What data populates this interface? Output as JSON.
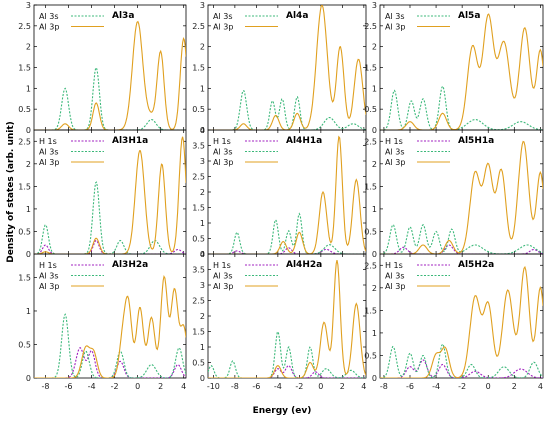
{
  "figure": {
    "ylabel": "Density of states (arb. unit)",
    "xlabel": "Energy (ev)"
  },
  "chart_data": [
    {
      "type": "line",
      "title": "Al3a",
      "xlim": [
        -9,
        4.2
      ],
      "ylim": [
        0,
        3
      ],
      "yticks": [
        0,
        0.5,
        1,
        1.5,
        2,
        2.5,
        3
      ],
      "xticks": [],
      "legend": [
        "Al 3s",
        "Al 3p"
      ],
      "series": [
        {
          "name": "Al 3s",
          "color": "#3cb87a",
          "dashed": true,
          "peaks": [
            [
              -6.3,
              1.0,
              0.3
            ],
            [
              -3.6,
              1.5,
              0.28
            ],
            [
              1.2,
              0.25,
              0.4
            ]
          ]
        },
        {
          "name": "Al 3p",
          "color": "#e0a020",
          "dashed": false,
          "peaks": [
            [
              -6.3,
              0.15,
              0.3
            ],
            [
              -3.6,
              0.65,
              0.28
            ],
            [
              0,
              2.6,
              0.45
            ],
            [
              2.0,
              1.85,
              0.3
            ],
            [
              4.0,
              2.2,
              0.3
            ],
            [
              1.2,
              0.3,
              0.4
            ]
          ]
        }
      ]
    },
    {
      "type": "line",
      "title": "Al4a",
      "xlim": [
        -10.5,
        4.2
      ],
      "ylim": [
        0,
        3
      ],
      "yticks": [
        0,
        0.5,
        1,
        1.5,
        2,
        2.5,
        3
      ],
      "xticks": [],
      "legend": [
        "Al 3s",
        "Al 3p"
      ],
      "series": [
        {
          "name": "Al 3s",
          "color": "#3cb87a",
          "dashed": true,
          "peaks": [
            [
              -7.2,
              0.95,
              0.3
            ],
            [
              -4.5,
              0.7,
              0.25
            ],
            [
              -3.6,
              0.75,
              0.25
            ],
            [
              -2.2,
              0.8,
              0.25
            ],
            [
              0.8,
              0.3,
              0.5
            ],
            [
              3.0,
              0.15,
              0.5
            ]
          ]
        },
        {
          "name": "Al 3p",
          "color": "#e0a020",
          "dashed": false,
          "peaks": [
            [
              -7.2,
              0.15,
              0.3
            ],
            [
              -4.2,
              0.35,
              0.3
            ],
            [
              -2.2,
              0.4,
              0.3
            ],
            [
              0.1,
              3.0,
              0.5
            ],
            [
              1.8,
              2.0,
              0.35
            ],
            [
              3.5,
              1.7,
              0.4
            ]
          ]
        }
      ]
    },
    {
      "type": "line",
      "title": "Al5a",
      "xlim": [
        -8.3,
        4.2
      ],
      "ylim": [
        0,
        3
      ],
      "yticks": [
        0,
        0.5,
        1,
        1.5,
        2,
        2.5,
        3
      ],
      "xticks": [],
      "legend": [
        "Al 3s",
        "Al 3p"
      ],
      "series": [
        {
          "name": "Al 3s",
          "color": "#3cb87a",
          "dashed": true,
          "peaks": [
            [
              -7.2,
              0.95,
              0.25
            ],
            [
              -5.9,
              0.7,
              0.25
            ],
            [
              -5.0,
              0.75,
              0.25
            ],
            [
              -3.5,
              1.05,
              0.25
            ],
            [
              -1.0,
              0.25,
              0.6
            ],
            [
              2.5,
              0.2,
              0.6
            ]
          ]
        },
        {
          "name": "Al 3p",
          "color": "#e0a020",
          "dashed": false,
          "peaks": [
            [
              -6.0,
              0.2,
              0.3
            ],
            [
              -3.5,
              0.4,
              0.3
            ],
            [
              0.0,
              2.7,
              0.4
            ],
            [
              -1.2,
              2.0,
              0.4
            ],
            [
              1.2,
              2.1,
              0.45
            ],
            [
              2.8,
              2.45,
              0.4
            ],
            [
              4.0,
              1.9,
              0.3
            ]
          ]
        }
      ]
    },
    {
      "type": "line",
      "title": "Al3H1a",
      "xlim": [
        -9,
        4.2
      ],
      "ylim": [
        0,
        2.75
      ],
      "yticks": [
        0,
        0.5,
        1,
        1.5,
        2,
        2.5
      ],
      "xticks": [],
      "legend": [
        "H 1s",
        "Al 3s",
        "Al 3p"
      ],
      "series": [
        {
          "name": "H 1s",
          "color": "#a020c0",
          "dashed": true,
          "peaks": [
            [
              -8.0,
              0.2,
              0.25
            ],
            [
              -3.6,
              0.3,
              0.25
            ],
            [
              3.5,
              0.1,
              0.3
            ]
          ]
        },
        {
          "name": "Al 3s",
          "color": "#3cb87a",
          "dashed": true,
          "peaks": [
            [
              -8.0,
              0.65,
              0.25
            ],
            [
              -3.6,
              1.6,
              0.28
            ],
            [
              -1.5,
              0.3,
              0.3
            ],
            [
              1.5,
              0.3,
              0.4
            ]
          ]
        },
        {
          "name": "Al 3p",
          "color": "#e0a020",
          "dashed": false,
          "peaks": [
            [
              -8.0,
              0.05,
              0.25
            ],
            [
              -3.6,
              0.35,
              0.28
            ],
            [
              0.2,
              2.3,
              0.4
            ],
            [
              2.1,
              2.0,
              0.3
            ],
            [
              3.9,
              2.6,
              0.3
            ]
          ]
        }
      ]
    },
    {
      "type": "line",
      "title": "Al4H1a",
      "xlim": [
        -10.5,
        4.2
      ],
      "ylim": [
        0,
        4
      ],
      "yticks": [
        0,
        0.5,
        1,
        1.5,
        2,
        2.5,
        3,
        3.5,
        4
      ],
      "xticks": [],
      "legend": [
        "H 1s",
        "Al 3s",
        "Al 3p"
      ],
      "series": [
        {
          "name": "H 1s",
          "color": "#a020c0",
          "dashed": true,
          "peaks": [
            [
              -7.8,
              0.1,
              0.3
            ],
            [
              -3.0,
              0.2,
              0.3
            ],
            [
              0.5,
              0.15,
              0.4
            ]
          ]
        },
        {
          "name": "Al 3s",
          "color": "#3cb87a",
          "dashed": true,
          "peaks": [
            [
              -7.8,
              0.7,
              0.25
            ],
            [
              -4.2,
              1.1,
              0.25
            ],
            [
              -3.0,
              0.75,
              0.25
            ],
            [
              -2.0,
              1.3,
              0.25
            ],
            [
              0.8,
              0.3,
              0.5
            ]
          ]
        },
        {
          "name": "Al 3p",
          "color": "#e0a020",
          "dashed": false,
          "peaks": [
            [
              -3.5,
              0.4,
              0.3
            ],
            [
              -2.0,
              0.7,
              0.3
            ],
            [
              0.2,
              2.0,
              0.35
            ],
            [
              1.7,
              3.8,
              0.3
            ],
            [
              3.3,
              2.4,
              0.35
            ]
          ]
        }
      ]
    },
    {
      "type": "line",
      "title": "Al5H1a",
      "xlim": [
        -8.3,
        4.2
      ],
      "ylim": [
        0,
        2.75
      ],
      "yticks": [
        0,
        0.5,
        1,
        1.5,
        2,
        2.5
      ],
      "xticks": [],
      "legend": [
        "H 1s",
        "Al 3s",
        "Al 3p"
      ],
      "series": [
        {
          "name": "H 1s",
          "color": "#a020c0",
          "dashed": true,
          "peaks": [
            [
              -6.5,
              0.15,
              0.3
            ],
            [
              -3.0,
              0.2,
              0.3
            ],
            [
              3.5,
              0.1,
              0.3
            ]
          ]
        },
        {
          "name": "Al 3s",
          "color": "#3cb87a",
          "dashed": true,
          "peaks": [
            [
              -7.3,
              0.65,
              0.25
            ],
            [
              -6.0,
              0.6,
              0.25
            ],
            [
              -5.0,
              0.65,
              0.25
            ],
            [
              -4.0,
              0.5,
              0.25
            ],
            [
              -2.8,
              0.55,
              0.25
            ],
            [
              -1.0,
              0.2,
              0.6
            ],
            [
              3.0,
              0.2,
              0.6
            ]
          ]
        },
        {
          "name": "Al 3p",
          "color": "#e0a020",
          "dashed": false,
          "peaks": [
            [
              -5.0,
              0.2,
              0.3
            ],
            [
              -3.0,
              0.3,
              0.3
            ],
            [
              -1.0,
              1.8,
              0.4
            ],
            [
              0.0,
              1.9,
              0.35
            ],
            [
              1.0,
              1.85,
              0.35
            ],
            [
              2.7,
              2.5,
              0.4
            ],
            [
              4.0,
              1.8,
              0.3
            ]
          ]
        }
      ]
    },
    {
      "type": "line",
      "title": "Al3H2a",
      "xlim": [
        -9,
        4.2
      ],
      "ylim": [
        0,
        1.85
      ],
      "yticks": [
        0,
        0.5,
        1,
        1.5
      ],
      "xticks": [
        -8,
        -6,
        -4,
        -2,
        0,
        2,
        4
      ],
      "legend": [
        "H 1s",
        "Al 3s",
        "Al 3p"
      ],
      "series": [
        {
          "name": "H 1s",
          "color": "#a020c0",
          "dashed": true,
          "peaks": [
            [
              -5.0,
              0.45,
              0.35
            ],
            [
              -4.0,
              0.4,
              0.3
            ],
            [
              -1.5,
              0.25,
              0.3
            ],
            [
              3.5,
              0.2,
              0.3
            ]
          ]
        },
        {
          "name": "Al 3s",
          "color": "#3cb87a",
          "dashed": true,
          "peaks": [
            [
              -6.3,
              0.95,
              0.3
            ],
            [
              -4.5,
              0.4,
              0.3
            ],
            [
              -1.5,
              0.4,
              0.3
            ],
            [
              1.2,
              0.2,
              0.4
            ],
            [
              3.6,
              0.45,
              0.3
            ]
          ]
        },
        {
          "name": "Al 3p",
          "color": "#e0a020",
          "dashed": false,
          "peaks": [
            [
              -4.5,
              0.45,
              0.35
            ],
            [
              -3.8,
              0.35,
              0.3
            ],
            [
              -1.3,
              0.55,
              0.3
            ],
            [
              -0.8,
              1.05,
              0.3
            ],
            [
              0.2,
              1.05,
              0.3
            ],
            [
              1.2,
              0.9,
              0.3
            ],
            [
              2.3,
              1.5,
              0.3
            ],
            [
              3.2,
              1.3,
              0.3
            ],
            [
              4.0,
              0.75,
              0.3
            ]
          ]
        }
      ]
    },
    {
      "type": "line",
      "title": "Al4H2a",
      "xlim": [
        -10.5,
        4.2
      ],
      "ylim": [
        0,
        4
      ],
      "yticks": [
        0,
        0.5,
        1,
        1.5,
        2,
        2.5,
        3,
        3.5,
        4
      ],
      "xticks": [
        -10,
        -8,
        -6,
        -4,
        -2,
        0,
        2,
        4
      ],
      "legend": [
        "H 1s",
        "Al 3s",
        "Al 3p"
      ],
      "series": [
        {
          "name": "H 1s",
          "color": "#a020c0",
          "dashed": true,
          "peaks": [
            [
              -4.0,
              0.3,
              0.3
            ],
            [
              -3.0,
              0.4,
              0.3
            ],
            [
              -0.5,
              0.2,
              0.3
            ]
          ]
        },
        {
          "name": "Al 3s",
          "color": "#3cb87a",
          "dashed": true,
          "peaks": [
            [
              -10.2,
              0.4,
              0.25
            ],
            [
              -8.2,
              0.55,
              0.25
            ],
            [
              -4.0,
              1.5,
              0.25
            ],
            [
              -3.0,
              1.0,
              0.25
            ],
            [
              -1.0,
              1.0,
              0.25
            ],
            [
              0.5,
              0.3,
              0.4
            ],
            [
              2.8,
              0.25,
              0.4
            ]
          ]
        },
        {
          "name": "Al 3p",
          "color": "#e0a020",
          "dashed": false,
          "peaks": [
            [
              -4.0,
              0.4,
              0.3
            ],
            [
              -1.0,
              0.5,
              0.3
            ],
            [
              0.3,
              1.8,
              0.35
            ],
            [
              1.5,
              3.8,
              0.3
            ],
            [
              3.3,
              2.4,
              0.35
            ]
          ]
        }
      ]
    },
    {
      "type": "line",
      "title": "Al5H2a",
      "xlim": [
        -8.3,
        4.2
      ],
      "ylim": [
        0,
        2.75
      ],
      "yticks": [
        0,
        0.5,
        1,
        1.5,
        2,
        2.5
      ],
      "xticks": [
        -8,
        -6,
        -4,
        -2,
        0,
        2,
        4
      ],
      "legend": [
        "H 1s",
        "Al 3s",
        "Al 3p"
      ],
      "series": [
        {
          "name": "H 1s",
          "color": "#a020c0",
          "dashed": true,
          "peaks": [
            [
              -6.0,
              0.25,
              0.3
            ],
            [
              -5.0,
              0.4,
              0.3
            ],
            [
              -3.5,
              0.3,
              0.3
            ],
            [
              -1.0,
              0.15,
              0.4
            ],
            [
              2.5,
              0.2,
              0.5
            ]
          ]
        },
        {
          "name": "Al 3s",
          "color": "#3cb87a",
          "dashed": true,
          "peaks": [
            [
              -7.3,
              0.7,
              0.25
            ],
            [
              -6.0,
              0.55,
              0.25
            ],
            [
              -5.0,
              0.5,
              0.25
            ],
            [
              -3.5,
              0.75,
              0.25
            ],
            [
              -1.3,
              0.3,
              0.3
            ],
            [
              1.2,
              0.25,
              0.4
            ],
            [
              3.5,
              0.35,
              0.3
            ]
          ]
        },
        {
          "name": "Al 3p",
          "color": "#e0a020",
          "dashed": false,
          "peaks": [
            [
              -4.0,
              0.5,
              0.3
            ],
            [
              -3.3,
              0.65,
              0.3
            ],
            [
              -1.0,
              1.8,
              0.4
            ],
            [
              0.0,
              1.6,
              0.35
            ],
            [
              1.5,
              1.95,
              0.4
            ],
            [
              2.8,
              2.45,
              0.35
            ],
            [
              4.0,
              2.0,
              0.3
            ]
          ]
        }
      ]
    }
  ]
}
